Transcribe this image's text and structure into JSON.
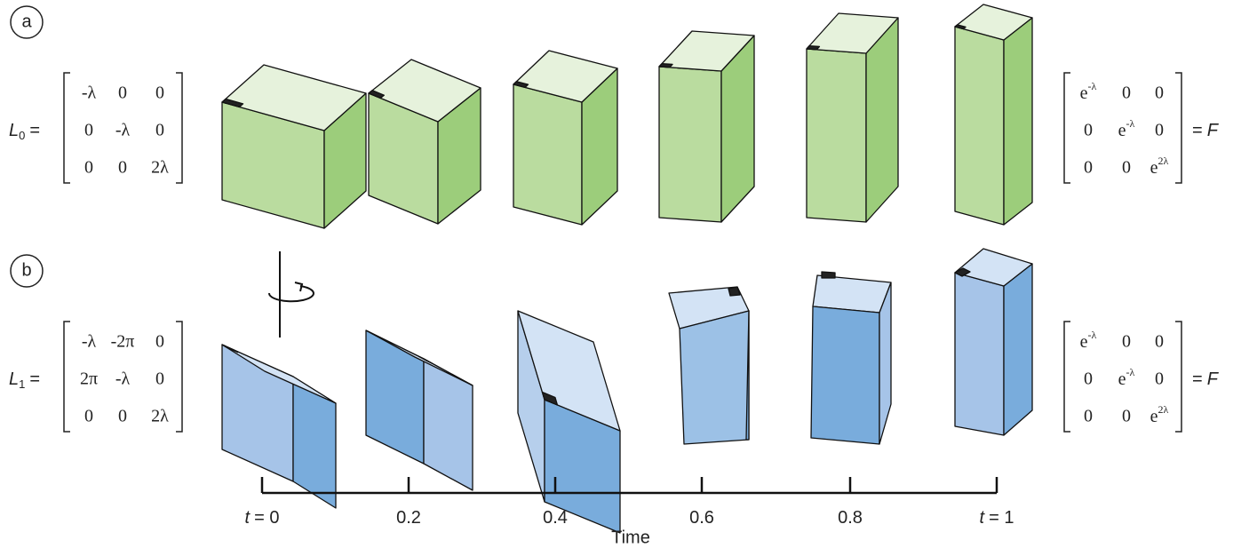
{
  "panels": [
    {
      "label": "a",
      "lhs": {
        "symbol": "L",
        "subscript": "0",
        "eq": "="
      },
      "matrix": [
        [
          "-λ",
          "0",
          "0"
        ],
        [
          "0",
          "-λ",
          "0"
        ],
        [
          "0",
          "0",
          "2λ"
        ]
      ],
      "result": [
        [
          {
            "base": "e",
            "sup": "-λ"
          },
          "0",
          "0"
        ],
        [
          "0",
          {
            "base": "e",
            "sup": "-λ"
          },
          "0"
        ],
        [
          "0",
          "0",
          {
            "base": "e",
            "sup": "2λ"
          }
        ]
      ],
      "rhs": {
        "eq": "=",
        "symbol": "F"
      }
    },
    {
      "label": "b",
      "lhs": {
        "symbol": "L",
        "subscript": "1",
        "eq": "="
      },
      "matrix": [
        [
          "-λ",
          "-2π",
          "0"
        ],
        [
          "2π",
          "-λ",
          "0"
        ],
        [
          "0",
          "0",
          "2λ"
        ]
      ],
      "result": [
        [
          {
            "base": "e",
            "sup": "-λ"
          },
          "0",
          "0"
        ],
        [
          "0",
          {
            "base": "e",
            "sup": "-λ"
          },
          "0"
        ],
        [
          "0",
          "0",
          {
            "base": "e",
            "sup": "2λ"
          }
        ]
      ],
      "rhs": {
        "eq": "=",
        "symbol": "F"
      }
    }
  ],
  "timeline": {
    "ticks": [
      {
        "var": "t",
        "rest": "= 0"
      },
      {
        "rest": "0.2"
      },
      {
        "rest": "0.4"
      },
      {
        "rest": "0.6"
      },
      {
        "rest": "0.8"
      },
      {
        "var": "t",
        "rest": "= 1"
      }
    ],
    "label": "Time"
  }
}
